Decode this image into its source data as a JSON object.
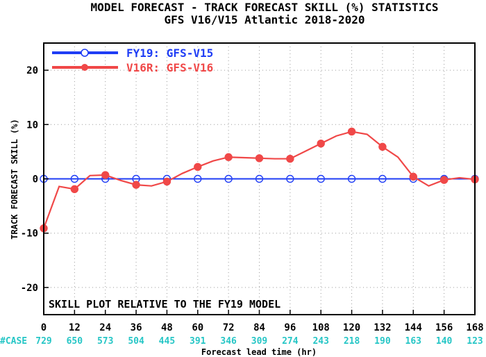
{
  "chart_data": {
    "type": "line",
    "title": "MODEL FORECAST - TRACK FORECAST SKILL (%) STATISTICS",
    "subtitle": "GFS V16/V15 Atlantic 2018-2020",
    "xlabel": "Forecast lead time (hr)",
    "ylabel": "TRACK FORECAST SKILL (%)",
    "xlim": [
      0,
      168
    ],
    "ylim": [
      -25,
      25
    ],
    "x_ticks": [
      0,
      12,
      24,
      36,
      48,
      60,
      72,
      84,
      96,
      108,
      120,
      132,
      144,
      156,
      168
    ],
    "y_ticks": [
      -20,
      -10,
      0,
      10,
      20
    ],
    "grid": true,
    "legend_position": "top-left",
    "annotation": "SKILL PLOT RELATIVE TO THE FY19 MODEL",
    "case_label": "#CASE",
    "case_counts": [
      "729",
      "650",
      "573",
      "504",
      "445",
      "391",
      "346",
      "309",
      "274",
      "243",
      "218",
      "190",
      "163",
      "140",
      "123"
    ],
    "series": [
      {
        "name": "FY19: GFS-V15",
        "color": "#1f3df5",
        "marker": "open-circle",
        "line_x": [
          0,
          168
        ],
        "line_y": [
          0,
          0
        ],
        "marker_x": [
          0,
          12,
          24,
          36,
          48,
          60,
          72,
          84,
          96,
          108,
          120,
          132,
          144,
          156,
          168
        ],
        "marker_y": [
          0,
          0,
          0,
          0,
          0,
          0,
          0,
          0,
          0,
          0,
          0,
          0,
          0,
          0,
          0
        ]
      },
      {
        "name": "V16R: GFS-V16",
        "color": "#f04848",
        "marker": "filled-circle",
        "line_x": [
          0,
          6,
          12,
          18,
          24,
          30,
          36,
          42,
          48,
          54,
          60,
          66,
          72,
          78,
          84,
          90,
          96,
          102,
          108,
          114,
          120,
          126,
          132,
          138,
          144,
          150,
          156,
          162,
          168
        ],
        "line_y": [
          -9.1,
          -1.4,
          -1.9,
          0.6,
          0.7,
          -0.3,
          -1.1,
          -1.3,
          -0.5,
          1.0,
          2.2,
          3.3,
          4.0,
          3.9,
          3.8,
          3.7,
          3.7,
          5.1,
          6.5,
          7.9,
          8.7,
          8.2,
          5.9,
          4.0,
          0.4,
          -1.3,
          -0.2,
          0.2,
          -0.1
        ],
        "marker_x": [
          0,
          12,
          24,
          36,
          48,
          60,
          72,
          84,
          96,
          108,
          120,
          132,
          144,
          156,
          168
        ],
        "marker_y": [
          -9.1,
          -1.9,
          0.7,
          -1.1,
          -0.5,
          2.2,
          4.0,
          3.8,
          3.7,
          6.5,
          8.7,
          5.9,
          0.4,
          -0.2,
          -0.1
        ]
      }
    ],
    "colors": {
      "case_text": "#26c6c6",
      "grid": "#9a9a9a",
      "axis": "#000000"
    }
  }
}
